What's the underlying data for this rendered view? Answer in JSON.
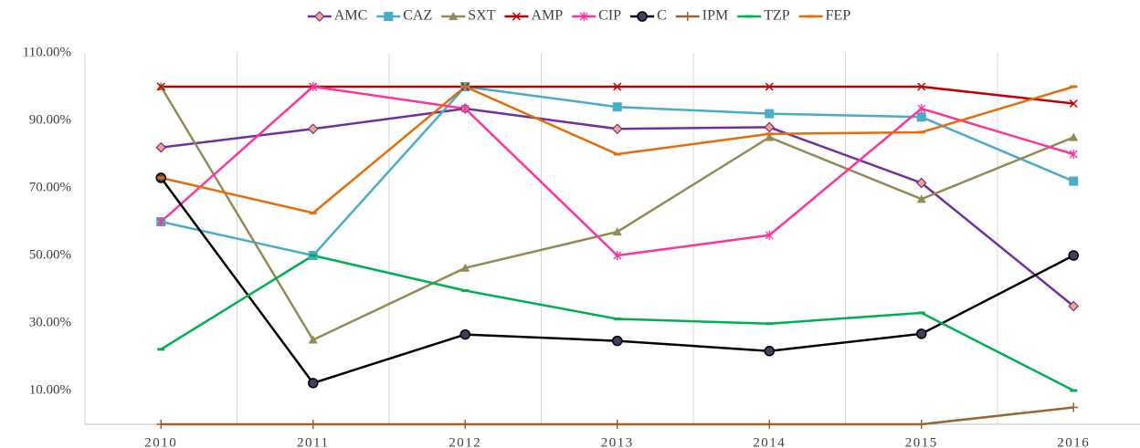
{
  "chart_data": {
    "type": "line",
    "categories": [
      "2010",
      "2011",
      "2012",
      "2013",
      "2014",
      "2015",
      "2016"
    ],
    "ylim": [
      0,
      110
    ],
    "yticks": [
      {
        "value": 10,
        "label": "10.00%"
      },
      {
        "value": 30,
        "label": "30.00%"
      },
      {
        "value": 50,
        "label": "50.00%"
      },
      {
        "value": 70,
        "label": "70.00%"
      },
      {
        "value": 90,
        "label": "90.00%"
      },
      {
        "value": 110,
        "label": "110.00%"
      }
    ],
    "legend": "top",
    "series": [
      {
        "name": "AMC",
        "color": "#7030a0",
        "marker": "diamond",
        "values": [
          82,
          87.5,
          93.5,
          87.5,
          88,
          71.5,
          35
        ]
      },
      {
        "name": "CAZ",
        "color": "#4bacc6",
        "marker": "square",
        "values": [
          60,
          50,
          100,
          94,
          92,
          91,
          72
        ]
      },
      {
        "name": "SXT",
        "color": "#948a54",
        "marker": "triangle",
        "values": [
          100,
          25,
          46.3,
          57,
          85,
          66.7,
          85
        ]
      },
      {
        "name": "AMP",
        "color": "#c00000",
        "marker": "x",
        "values": [
          100,
          100,
          100,
          100,
          100,
          100,
          95
        ]
      },
      {
        "name": "CIP",
        "color": "#ff3399",
        "marker": "star",
        "values": [
          60,
          100,
          93.5,
          50,
          56,
          93.5,
          80
        ]
      },
      {
        "name": "C",
        "color": "#000000",
        "marker": "circle",
        "values": [
          73,
          12.2,
          26.6,
          24.7,
          21.7,
          26.8,
          50
        ]
      },
      {
        "name": "IPM",
        "color": "#996633",
        "marker": "plus",
        "values": [
          0,
          0,
          0,
          0,
          0,
          0,
          5
        ]
      },
      {
        "name": "TZP",
        "color": "#00b050",
        "marker": "dash",
        "values": [
          22.2,
          50,
          39.6,
          31.2,
          29.8,
          33,
          10
        ]
      },
      {
        "name": "FEP",
        "color": "#e46c0a",
        "marker": "dash",
        "values": [
          73,
          62.6,
          100,
          80,
          86,
          86.5,
          100
        ]
      }
    ]
  }
}
